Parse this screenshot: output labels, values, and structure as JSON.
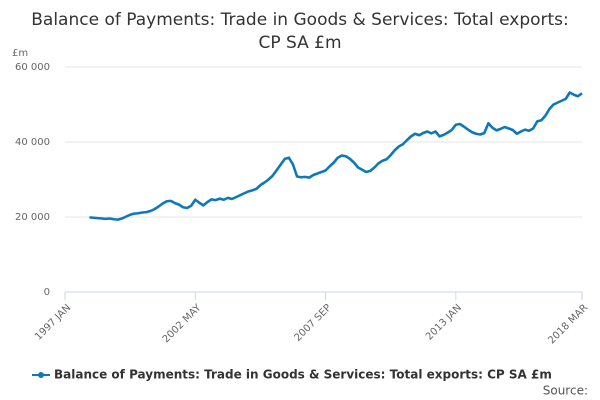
{
  "chart_data": {
    "type": "line",
    "title": "Balance of Payments: Trade in Goods & Services: Total exports: CP SA £m",
    "y_label": "£m",
    "source": "Source:",
    "categories": [
      "1997 JAN",
      null,
      null,
      null,
      null,
      null,
      null,
      null,
      null,
      null,
      null,
      null,
      null,
      null,
      null,
      null,
      null,
      null,
      null,
      null,
      null,
      null,
      null,
      null,
      null,
      null,
      null,
      null,
      null,
      null,
      null,
      null,
      "2002 MAY",
      null,
      null,
      null,
      null,
      null,
      null,
      null,
      null,
      null,
      null,
      null,
      null,
      null,
      null,
      null,
      null,
      null,
      null,
      null,
      null,
      null,
      null,
      null,
      null,
      null,
      null,
      null,
      null,
      null,
      null,
      null,
      "2007 SEP",
      null,
      null,
      null,
      null,
      null,
      null,
      null,
      null,
      null,
      null,
      null,
      null,
      null,
      null,
      null,
      null,
      null,
      null,
      null,
      null,
      null,
      null,
      null,
      null,
      null,
      null,
      null,
      null,
      null,
      null,
      null,
      "2013 JAN",
      null,
      null,
      null,
      null,
      null,
      null,
      null,
      null,
      null,
      null,
      null,
      null,
      null,
      null,
      null,
      null,
      null,
      null,
      null,
      null,
      null,
      null,
      null,
      null,
      null,
      null,
      null,
      null,
      null,
      null,
      "2018 MAR"
    ],
    "series": [
      {
        "name": "Balance of Payments: Trade in Goods & Services: Total exports: CP SA £m",
        "color": "#0f78b8",
        "values": [
          null,
          null,
          null,
          null,
          null,
          null,
          19900,
          19800,
          19700,
          19600,
          19500,
          19600,
          19400,
          19300,
          19600,
          20100,
          20600,
          20900,
          21000,
          21200,
          21300,
          21600,
          22100,
          22800,
          23600,
          24200,
          24300,
          23700,
          23300,
          22600,
          22400,
          23000,
          24600,
          23800,
          23100,
          24000,
          24700,
          24500,
          24900,
          24600,
          25100,
          24800,
          25300,
          25800,
          26300,
          26800,
          27100,
          27500,
          28500,
          29200,
          30000,
          31000,
          32500,
          34000,
          35500,
          35800,
          34000,
          30800,
          30600,
          30700,
          30500,
          31200,
          31600,
          32000,
          32400,
          33500,
          34500,
          35800,
          36400,
          36200,
          35500,
          34500,
          33200,
          32600,
          32000,
          32300,
          33200,
          34300,
          35000,
          35400,
          36500,
          37800,
          38800,
          39400,
          40500,
          41500,
          42200,
          41800,
          42400,
          42800,
          42300,
          42800,
          41500,
          41900,
          42500,
          43200,
          44600,
          44800,
          44100,
          43300,
          42600,
          42200,
          42000,
          42400,
          45000,
          43800,
          43100,
          43500,
          44000,
          43600,
          43200,
          42200,
          42800,
          43300,
          43000,
          43600,
          45500,
          45800,
          47000,
          48800,
          50000,
          50500,
          51000,
          51500,
          53200,
          52600,
          52200,
          53000
        ]
      }
    ],
    "ylim": [
      0,
      60000
    ],
    "yticks": [
      0,
      {
        "value": 20000,
        "label": "20 000"
      },
      {
        "value": 40000,
        "label": "40 000"
      },
      {
        "value": 60000,
        "label": "60 000"
      }
    ],
    "grid": true
  }
}
